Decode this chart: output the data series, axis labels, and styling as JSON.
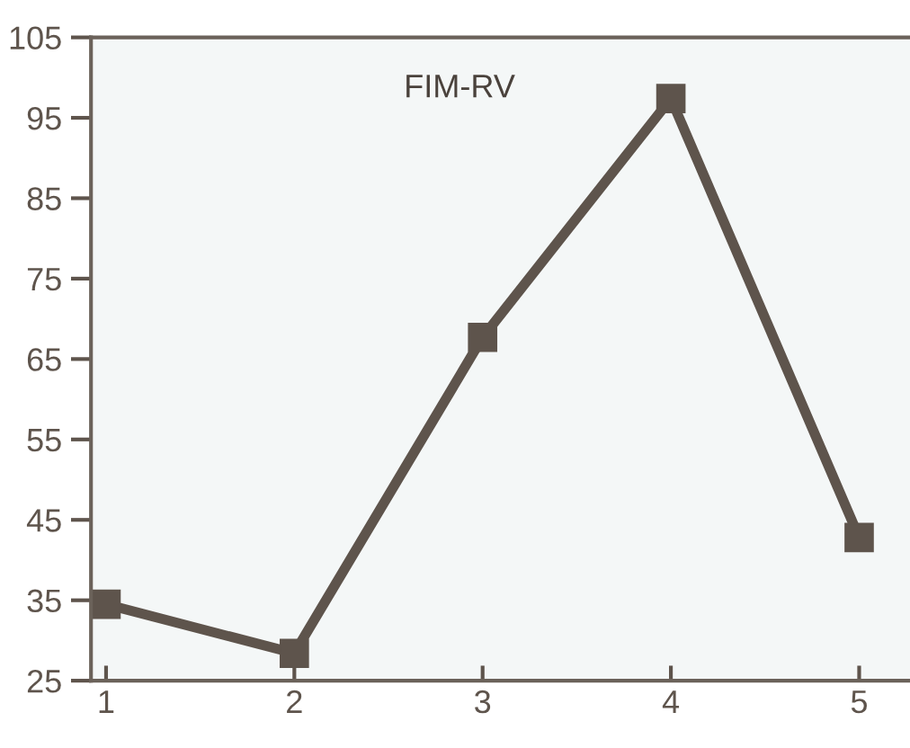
{
  "chart_data": {
    "type": "line",
    "title": "FIM-RV",
    "x": [
      1,
      2,
      3,
      4,
      5
    ],
    "series": [
      {
        "color": "#5e544c",
        "values": [
          34.5,
          28.4,
          67.7,
          97.4,
          42.8
        ]
      }
    ],
    "marker": "square",
    "line_style": "solid",
    "grid": false,
    "legend": false,
    "xlim": [
      0.92,
      5.27
    ],
    "xticks": [
      1,
      2,
      3,
      4,
      5
    ],
    "ylim": [
      25,
      105
    ],
    "yticks": [
      25,
      35,
      45,
      55,
      65,
      75,
      85,
      95,
      105
    ]
  }
}
